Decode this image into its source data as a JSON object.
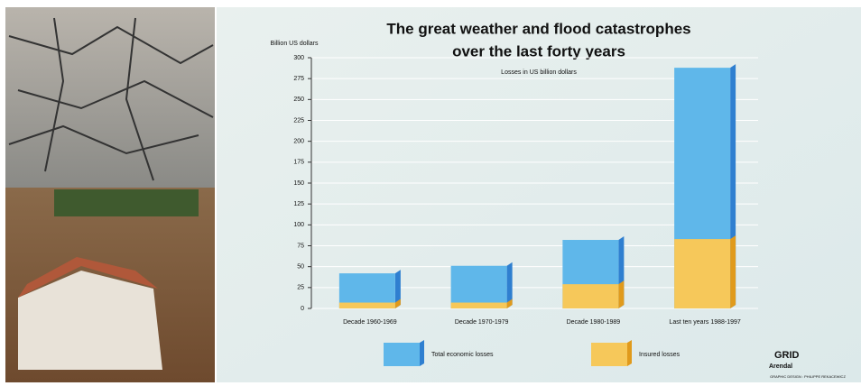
{
  "chart_data": {
    "type": "bar",
    "title": "The great weather and flood catastrophes",
    "title_line2": "over the last forty years",
    "subtitle": "Losses in US billion dollars",
    "y_axis_label": "Billion US dollars",
    "categories": [
      "Decade 1960-1969",
      "Decade 1970-1979",
      "Decade 1980-1989",
      "Last ten years 1988-1997"
    ],
    "series": [
      {
        "name": "Total economic losses",
        "color": "#5fb7ea",
        "side_color": "#2f7fd0",
        "values": [
          42,
          51,
          82,
          288
        ]
      },
      {
        "name": "Insured losses",
        "color": "#f6c85a",
        "side_color": "#e09a1c",
        "values": [
          7,
          7,
          29,
          83
        ]
      }
    ],
    "ylim": [
      0,
      300
    ],
    "yticks": [
      0,
      25,
      50,
      75,
      100,
      125,
      150,
      175,
      200,
      225,
      250,
      275,
      300
    ],
    "grid": true
  },
  "credits": {
    "logo": "GRID",
    "logo_sub": "Arendal",
    "designer": "GRAPHIC DESIGN : PHILIPPE REKACEWICZ"
  }
}
